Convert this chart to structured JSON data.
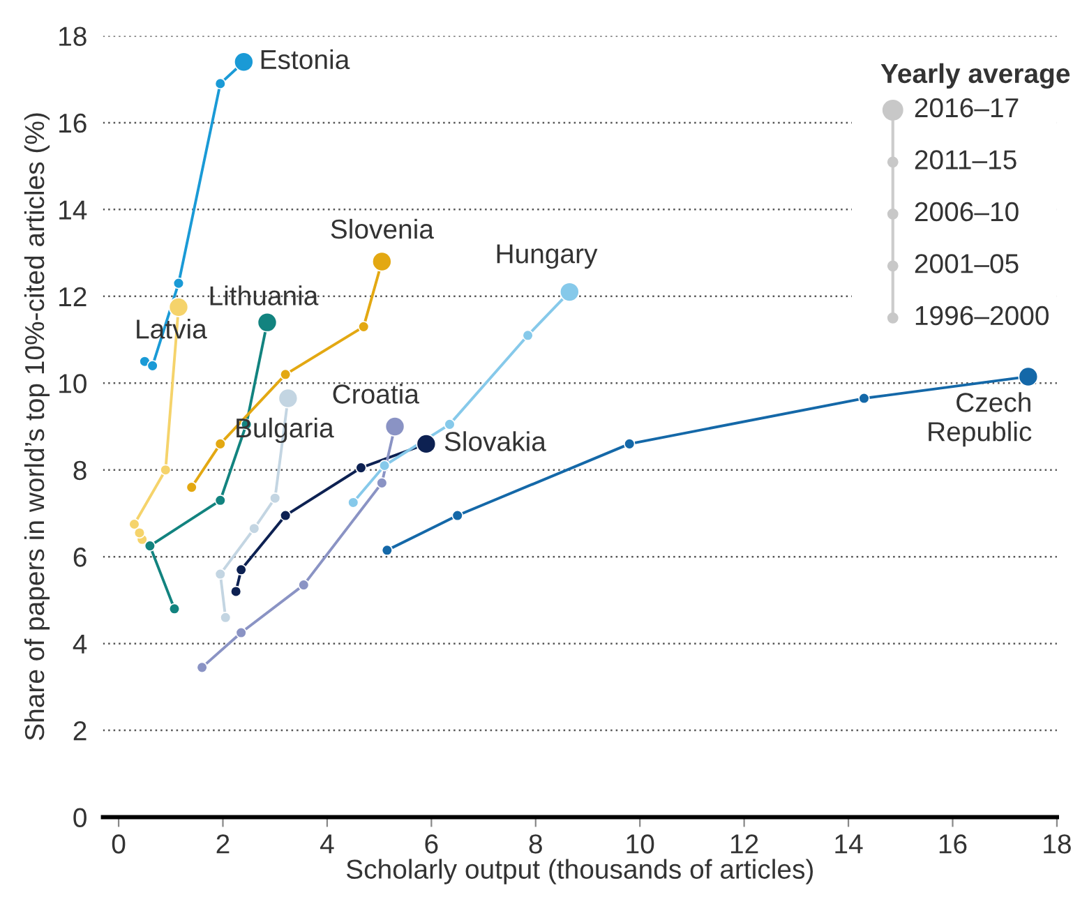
{
  "chart_data": {
    "type": "line",
    "xlabel": "Scholarly output (thousands of articles)",
    "ylabel": "Share of papers in world’s top 10%-cited articles (%)",
    "legend_title": "Yearly average",
    "legend": "top right",
    "marker": "circle",
    "line_style": "solid",
    "grid": "y",
    "annotations": [
      "1996–2000",
      "2001–05",
      "2006–10",
      "2011–15",
      "2016–17"
    ],
    "xlim": [
      -0.3,
      18
    ],
    "xticks": [
      0,
      2,
      4,
      6,
      8,
      10,
      12,
      14,
      16,
      18
    ],
    "ylim": [
      0,
      18
    ],
    "yticks": [
      0,
      2,
      4,
      6,
      8,
      10,
      12,
      14,
      16,
      18
    ],
    "series": [
      {
        "name": "Estonia",
        "color": "#1a9ad6",
        "x": [
          0.5,
          0.65,
          1.15,
          1.95,
          2.4
        ],
        "values": [
          10.5,
          10.4,
          12.3,
          16.9,
          17.4
        ]
      },
      {
        "name": "Latvia",
        "color": "#f5d36b",
        "x": [
          0.45,
          0.4,
          0.3,
          0.9,
          1.15
        ],
        "values": [
          6.4,
          6.55,
          6.75,
          8.0,
          11.75
        ]
      },
      {
        "name": "Lithuania",
        "color": "#12837f",
        "x": [
          1.07,
          0.6,
          1.95,
          2.45,
          2.85
        ],
        "values": [
          4.8,
          6.25,
          7.3,
          9.05,
          11.4
        ]
      },
      {
        "name": "Slovenia",
        "color": "#e3a812",
        "x": [
          1.4,
          1.95,
          3.2,
          4.7,
          5.05
        ],
        "values": [
          7.6,
          8.6,
          10.2,
          11.3,
          12.8
        ]
      },
      {
        "name": "Bulgaria",
        "color": "#c3d5e2",
        "x": [
          2.05,
          1.95,
          2.6,
          3.0,
          3.25
        ],
        "values": [
          4.6,
          5.6,
          6.65,
          7.35,
          9.65
        ]
      },
      {
        "name": "Slovakia",
        "color": "#0d2152",
        "x": [
          2.25,
          2.35,
          3.2,
          4.65,
          5.9
        ],
        "values": [
          5.2,
          5.7,
          6.95,
          8.05,
          8.6
        ]
      },
      {
        "name": "Croatia",
        "color": "#8a93c4",
        "x": [
          1.6,
          2.35,
          3.55,
          5.05,
          5.3
        ],
        "values": [
          3.45,
          4.25,
          5.35,
          7.7,
          9.0
        ]
      },
      {
        "name": "Hungary",
        "color": "#86c9ea",
        "x": [
          4.5,
          5.1,
          6.35,
          7.85,
          8.65
        ],
        "values": [
          7.25,
          8.1,
          9.05,
          11.1,
          12.1
        ]
      },
      {
        "name": "Czech\nRepublic",
        "color": "#1468a8",
        "x": [
          5.15,
          6.5,
          9.8,
          14.3,
          17.45
        ],
        "values": [
          6.15,
          6.95,
          8.6,
          9.65,
          10.15
        ]
      }
    ]
  }
}
